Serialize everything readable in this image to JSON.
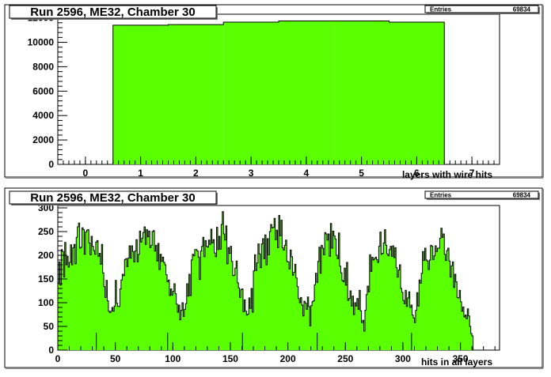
{
  "chart_data": [
    {
      "type": "bar",
      "title": "Run 2596, ME32, Chamber 30",
      "stats": {
        "entries_label": "Entries",
        "entries_value": "69834"
      },
      "xlabel": "layers with wire hits",
      "ylabel": "",
      "xlim": [
        -0.5,
        7.5
      ],
      "ylim": [
        0,
        12300
      ],
      "xticks": [
        0,
        1,
        2,
        3,
        4,
        5,
        6,
        7
      ],
      "yticks": [
        0,
        2000,
        4000,
        6000,
        8000,
        10000,
        12000
      ],
      "categories": [
        1,
        2,
        3,
        4,
        5,
        6
      ],
      "values": [
        11400,
        11450,
        11650,
        11750,
        11750,
        11650
      ],
      "fill_color": "#5aff00",
      "grid": false
    },
    {
      "type": "bar",
      "title": "Run 2596, ME32, Chamber 30",
      "stats": {
        "entries_label": "Entries",
        "entries_value": "69834"
      },
      "xlabel": "hits in all layers",
      "ylabel": "",
      "xlim": [
        0,
        384
      ],
      "ylim": [
        0,
        305
      ],
      "xticks": [
        0,
        50,
        100,
        150,
        200,
        250,
        300,
        350
      ],
      "yticks": [
        0,
        50,
        100,
        150,
        200,
        250,
        300
      ],
      "x_start": 0,
      "bin_width": 1,
      "values": [
        142,
        186,
        137,
        212,
        208,
        154,
        227,
        180,
        198,
        175,
        185,
        222,
        180,
        216,
        223,
        182,
        238,
        260,
        268,
        215,
        217,
        258,
        254,
        202,
        249,
        253,
        254,
        226,
        201,
        240,
        219,
        210,
        202,
        228,
        231,
        198,
        204,
        181,
        223,
        163,
        134,
        111,
        147,
        104,
        82,
        79,
        82,
        90,
        82,
        93,
        147,
        99,
        92,
        92,
        129,
        148,
        160,
        157,
        191,
        193,
        176,
        194,
        220,
        194,
        220,
        208,
        186,
        209,
        233,
        186,
        202,
        251,
        228,
        236,
        248,
        260,
        223,
        254,
        239,
        251,
        216,
        221,
        250,
        252,
        209,
        221,
        188,
        225,
        170,
        202,
        187,
        196,
        185,
        180,
        159,
        144,
        148,
        115,
        129,
        116,
        124,
        140,
        119,
        97,
        80,
        95,
        64,
        84,
        100,
        71,
        86,
        98,
        140,
        114,
        160,
        115,
        190,
        202,
        199,
        212,
        212,
        209,
        196,
        149,
        209,
        219,
        238,
        197,
        231,
        219,
        217,
        232,
        223,
        255,
        226,
        233,
        205,
        197,
        259,
        212,
        240,
        213,
        265,
        292,
        245,
        232,
        262,
        182,
        216,
        204,
        219,
        187,
        157,
        158,
        173,
        188,
        142,
        131,
        111,
        128,
        129,
        81,
        106,
        82,
        74,
        76,
        110,
        88,
        130,
        80,
        167,
        201,
        168,
        184,
        224,
        203,
        174,
        224,
        235,
        193,
        243,
        180,
        235,
        201,
        250,
        265,
        258,
        259,
        278,
        233,
        253,
        216,
        284,
        241,
        274,
        216,
        211,
        221,
        232,
        187,
        186,
        171,
        211,
        197,
        158,
        164,
        181,
        152,
        134,
        109,
        100,
        111,
        95,
        72,
        103,
        99,
        86,
        112,
        92,
        51,
        94,
        102,
        104,
        138,
        162,
        143,
        187,
        217,
        162,
        221,
        215,
        201,
        248,
        245,
        232,
        245,
        198,
        267,
        215,
        251,
        241,
        234,
        200,
        193,
        247,
        177,
        163,
        147,
        144,
        173,
        137,
        185,
        105,
        109,
        125,
        93,
        114,
        75,
        100,
        93,
        109,
        86,
        126,
        83,
        58,
        63,
        40,
        84,
        117,
        135,
        123,
        201,
        166,
        196,
        190,
        193,
        196,
        191,
        185,
        219,
        249,
        202,
        204,
        226,
        254,
        221,
        203,
        199,
        212,
        219,
        198,
        220,
        195,
        216,
        174,
        154,
        169,
        180,
        130,
        122,
        105,
        98,
        126,
        92,
        110,
        123,
        90,
        95,
        74,
        68,
        58,
        84,
        121,
        93,
        148,
        141,
        162,
        208,
        189,
        215,
        190,
        188,
        170,
        190,
        221,
        219,
        191,
        199,
        220,
        208,
        215,
        215,
        236,
        257,
        238,
        245,
        202,
        189,
        210,
        215,
        188,
        154,
        178,
        186,
        132,
        160,
        144,
        111,
        110,
        126,
        102,
        82,
        91,
        70,
        74,
        66,
        87,
        72,
        50,
        35,
        30
      ],
      "spike_bins": [
        33,
        95,
        160,
        225,
        307
      ],
      "fill_color": "#5aff00",
      "grid": false
    }
  ]
}
